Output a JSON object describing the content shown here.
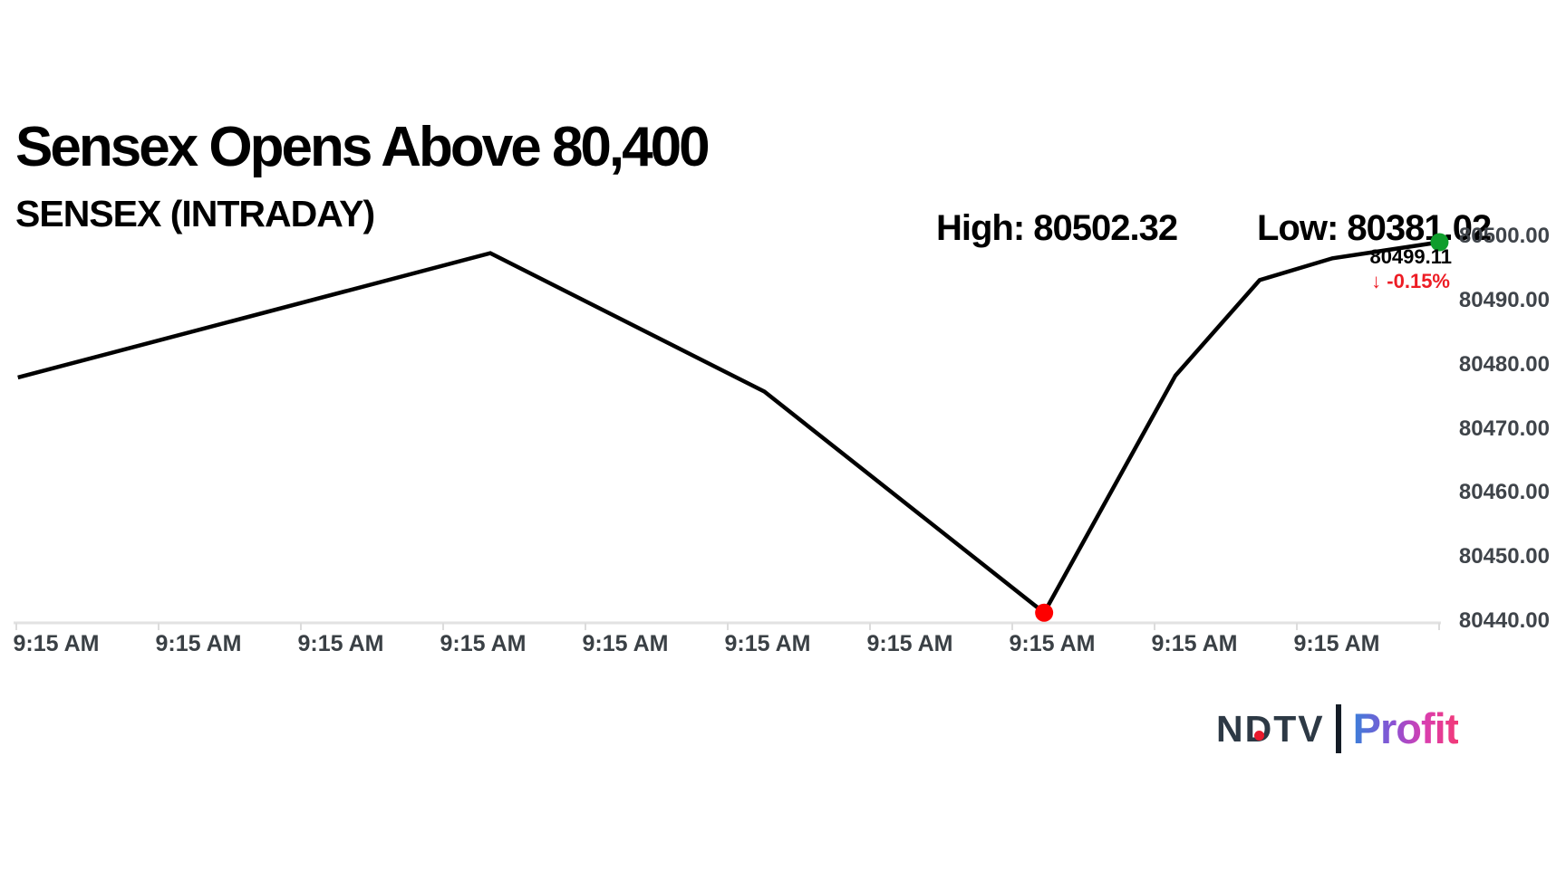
{
  "header": {
    "title": "Sensex Opens Above 80,400",
    "subtitle": "SENSEX (INTRADAY)"
  },
  "stats": {
    "high_label": "High: 80502.32",
    "low_label": "Low: 80381.02"
  },
  "last_quote": {
    "value": "80499.11",
    "arrow": "↓",
    "change": "-0.15%",
    "change_color": "#ed1c24"
  },
  "chart_data": {
    "type": "line",
    "title": "SENSEX (INTRADAY)",
    "high": 80502.32,
    "low": 80381.02,
    "last": 80499.11,
    "change_pct": -0.15,
    "line_color": "#000000",
    "axis_color": "#e2e2e2",
    "grid": false,
    "legend": false,
    "y_axis": {
      "side": "right",
      "ticks": [
        80500,
        80490,
        80480,
        80470,
        80460,
        80450,
        80440
      ],
      "decimals": 2,
      "label_color": "#3f444a",
      "ylim": [
        80440,
        80505
      ]
    },
    "x_axis": {
      "labels": [
        "9:15 AM",
        "9:15 AM",
        "9:15 AM",
        "9:15 AM",
        "9:15 AM",
        "9:15 AM",
        "9:15 AM",
        "9:15 AM",
        "9:15 AM",
        "9:15 AM"
      ],
      "label_color": "#3a4045"
    },
    "series": [
      {
        "name": "SENSEX",
        "points": [
          {
            "t": 0.003,
            "value": 80478.0
          },
          {
            "t": 0.334,
            "value": 80497.4
          },
          {
            "t": 0.526,
            "value": 80475.8
          },
          {
            "t": 0.722,
            "value": 80441.3
          },
          {
            "t": 0.814,
            "value": 80478.3
          },
          {
            "t": 0.873,
            "value": 80493.2
          },
          {
            "t": 0.924,
            "value": 80496.6
          },
          {
            "t": 0.999,
            "value": 80499.11
          }
        ]
      }
    ],
    "markers": [
      {
        "name": "session-low-marker",
        "point_index": 3,
        "color": "#fe0000",
        "radius": 10
      },
      {
        "name": "last-price-marker",
        "point_index": 7,
        "color": "#0f9d2c",
        "radius": 10
      }
    ]
  },
  "logo": {
    "brand": "NDTV",
    "separator": "|",
    "product": "Profit",
    "brand_color": "#2d3945",
    "dot_color": "#e8192c"
  }
}
